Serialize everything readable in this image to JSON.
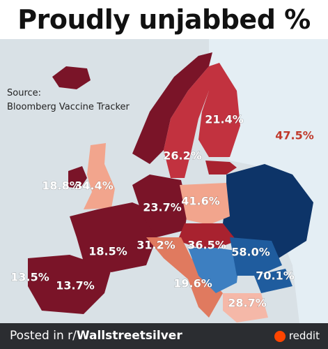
{
  "title": "Proudly unjabbed %",
  "source": [
    "Source:",
    "Bloomberg Vaccine Tracker"
  ],
  "labels": [
    "21.4%",
    "47.5%",
    "26.2%",
    "18.8%",
    "34.4%",
    "23.7%",
    "41.6%",
    "58.0%",
    "36.5%",
    "18.5%",
    "31.2%",
    "70.1%",
    "13.5%",
    "13.7%",
    "19.6%",
    "28.7%"
  ],
  "footer": {
    "posted": "Posted in r/",
    "community": "Wallstreetsilver",
    "brand": "reddit"
  }
}
